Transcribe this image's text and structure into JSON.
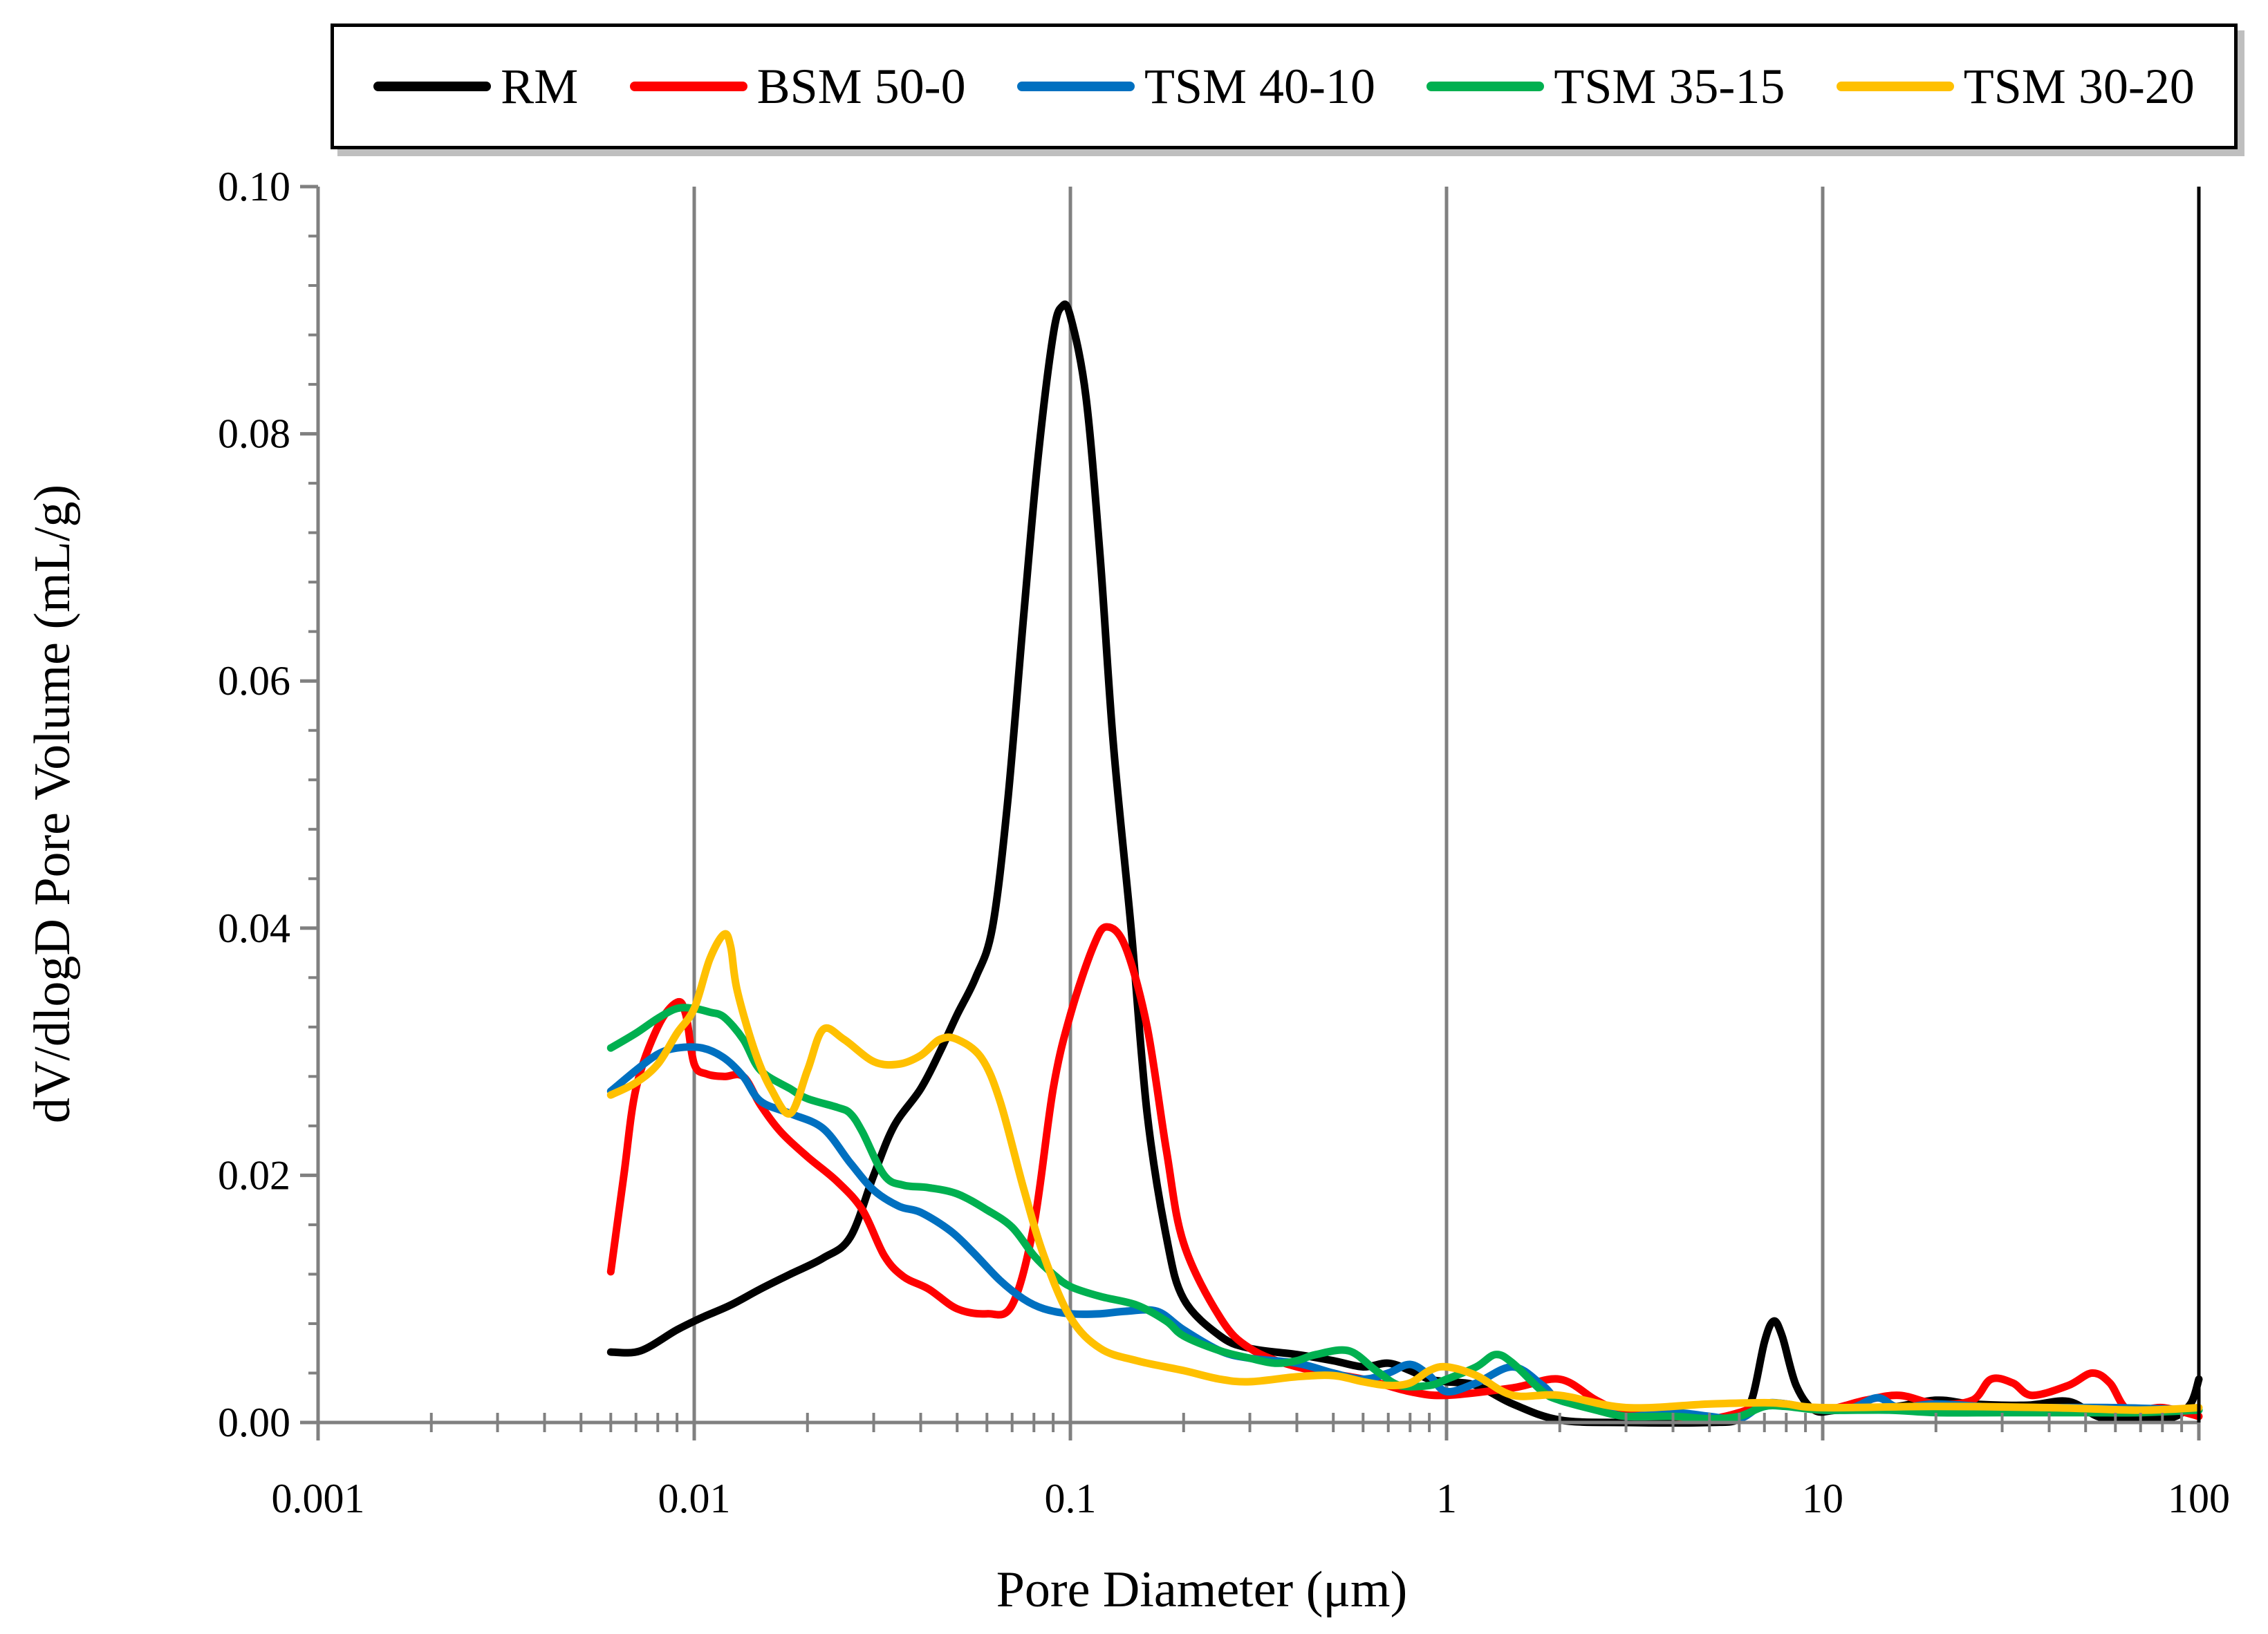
{
  "chart_data": {
    "type": "line",
    "title": "",
    "xlabel": "Pore Diameter (μm)",
    "ylabel": "dV/dlogD Pore Volume (mL/g)",
    "xscale": "log",
    "xlim": [
      0.001,
      100
    ],
    "ylim": [
      0,
      0.1
    ],
    "x_ticks": [
      0.001,
      0.01,
      0.1,
      1,
      10,
      100
    ],
    "x_tick_labels": [
      "0.001",
      "0.01",
      "0.1",
      "1",
      "10",
      "100"
    ],
    "y_ticks": [
      0,
      0.02,
      0.04,
      0.06,
      0.08,
      0.1
    ],
    "y_tick_labels": [
      "0.00",
      "0.02",
      "0.04",
      "0.06",
      "0.08",
      "0.10"
    ],
    "grid": "vertical major gridlines",
    "legend_position": "top",
    "series": [
      {
        "name": "RM",
        "color": "#000000",
        "points": [
          [
            0.006,
            0.0057
          ],
          [
            0.0072,
            0.0058
          ],
          [
            0.009,
            0.0075
          ],
          [
            0.0105,
            0.0085
          ],
          [
            0.0125,
            0.0095
          ],
          [
            0.015,
            0.0108
          ],
          [
            0.018,
            0.012
          ],
          [
            0.022,
            0.0133
          ],
          [
            0.026,
            0.015
          ],
          [
            0.03,
            0.02
          ],
          [
            0.034,
            0.024
          ],
          [
            0.04,
            0.027
          ],
          [
            0.045,
            0.03
          ],
          [
            0.05,
            0.033
          ],
          [
            0.056,
            0.036
          ],
          [
            0.062,
            0.04
          ],
          [
            0.068,
            0.05
          ],
          [
            0.075,
            0.065
          ],
          [
            0.082,
            0.078
          ],
          [
            0.09,
            0.088
          ],
          [
            0.095,
            0.0903
          ],
          [
            0.1,
            0.0895
          ],
          [
            0.11,
            0.083
          ],
          [
            0.12,
            0.07
          ],
          [
            0.13,
            0.055
          ],
          [
            0.145,
            0.04
          ],
          [
            0.16,
            0.025
          ],
          [
            0.18,
            0.015
          ],
          [
            0.2,
            0.01
          ],
          [
            0.25,
            0.007
          ],
          [
            0.3,
            0.006
          ],
          [
            0.4,
            0.0055
          ],
          [
            0.5,
            0.005
          ],
          [
            0.6,
            0.0045
          ],
          [
            0.7,
            0.0048
          ],
          [
            0.8,
            0.0042
          ],
          [
            0.9,
            0.0035
          ],
          [
            1,
            0.0033
          ],
          [
            1.2,
            0.003
          ],
          [
            1.5,
            0.0015
          ],
          [
            2,
            0.0002
          ],
          [
            3,
            0
          ],
          [
            5,
            0
          ],
          [
            6,
            0.0003
          ],
          [
            6.5,
            0.002
          ],
          [
            7,
            0.0065
          ],
          [
            7.4,
            0.0082
          ],
          [
            7.8,
            0.007
          ],
          [
            8.5,
            0.003
          ],
          [
            9.5,
            0.001
          ],
          [
            11,
            0.001
          ],
          [
            15,
            0.0012
          ],
          [
            20,
            0.0018
          ],
          [
            25,
            0.0015
          ],
          [
            35,
            0.0014
          ],
          [
            45,
            0.0017
          ],
          [
            55,
            0.0004
          ],
          [
            70,
            0.0003
          ],
          [
            85,
            0.0004
          ],
          [
            95,
            0.0015
          ],
          [
            100,
            0.0035
          ]
        ]
      },
      {
        "name": "BSM 50-0",
        "color": "#ff0000",
        "points": [
          [
            0.006,
            0.0122
          ],
          [
            0.0065,
            0.02
          ],
          [
            0.007,
            0.027
          ],
          [
            0.008,
            0.032
          ],
          [
            0.009,
            0.034
          ],
          [
            0.0095,
            0.033
          ],
          [
            0.01,
            0.029
          ],
          [
            0.0108,
            0.0282
          ],
          [
            0.012,
            0.028
          ],
          [
            0.0135,
            0.028
          ],
          [
            0.015,
            0.0257
          ],
          [
            0.017,
            0.0235
          ],
          [
            0.02,
            0.0215
          ],
          [
            0.024,
            0.0195
          ],
          [
            0.028,
            0.0172
          ],
          [
            0.032,
            0.0135
          ],
          [
            0.036,
            0.0118
          ],
          [
            0.042,
            0.0108
          ],
          [
            0.05,
            0.0092
          ],
          [
            0.06,
            0.0088
          ],
          [
            0.07,
            0.0095
          ],
          [
            0.08,
            0.016
          ],
          [
            0.09,
            0.027
          ],
          [
            0.1,
            0.033
          ],
          [
            0.115,
            0.0385
          ],
          [
            0.125,
            0.0401
          ],
          [
            0.14,
            0.0385
          ],
          [
            0.16,
            0.032
          ],
          [
            0.18,
            0.022
          ],
          [
            0.2,
            0.0145
          ],
          [
            0.25,
            0.0085
          ],
          [
            0.3,
            0.006
          ],
          [
            0.4,
            0.0045
          ],
          [
            0.6,
            0.0035
          ],
          [
            0.8,
            0.0025
          ],
          [
            1,
            0.0022
          ],
          [
            1.5,
            0.0028
          ],
          [
            2,
            0.0035
          ],
          [
            2.5,
            0.0018
          ],
          [
            3,
            0.0008
          ],
          [
            4,
            0.0005
          ],
          [
            5,
            0.0003
          ],
          [
            6,
            0.0008
          ],
          [
            7,
            0.0015
          ],
          [
            8,
            0.0015
          ],
          [
            10,
            0.001
          ],
          [
            13,
            0.0018
          ],
          [
            16,
            0.0022
          ],
          [
            20,
            0.0015
          ],
          [
            25,
            0.0018
          ],
          [
            28,
            0.0035
          ],
          [
            32,
            0.0032
          ],
          [
            36,
            0.0022
          ],
          [
            45,
            0.003
          ],
          [
            52,
            0.004
          ],
          [
            58,
            0.0032
          ],
          [
            65,
            0.001
          ],
          [
            80,
            0.0012
          ],
          [
            100,
            0.0005
          ]
        ]
      },
      {
        "name": "TSM 40-10",
        "color": "#0070c0",
        "points": [
          [
            0.006,
            0.0268
          ],
          [
            0.007,
            0.0285
          ],
          [
            0.008,
            0.0298
          ],
          [
            0.009,
            0.0303
          ],
          [
            0.0105,
            0.0303
          ],
          [
            0.012,
            0.0295
          ],
          [
            0.0135,
            0.028
          ],
          [
            0.015,
            0.026
          ],
          [
            0.018,
            0.025
          ],
          [
            0.022,
            0.0238
          ],
          [
            0.026,
            0.021
          ],
          [
            0.03,
            0.0188
          ],
          [
            0.035,
            0.0175
          ],
          [
            0.04,
            0.017
          ],
          [
            0.048,
            0.0155
          ],
          [
            0.055,
            0.0138
          ],
          [
            0.065,
            0.0115
          ],
          [
            0.075,
            0.01
          ],
          [
            0.085,
            0.0092
          ],
          [
            0.1,
            0.0088
          ],
          [
            0.12,
            0.0088
          ],
          [
            0.14,
            0.009
          ],
          [
            0.17,
            0.009
          ],
          [
            0.2,
            0.0075
          ],
          [
            0.25,
            0.0058
          ],
          [
            0.3,
            0.0052
          ],
          [
            0.4,
            0.0048
          ],
          [
            0.5,
            0.004
          ],
          [
            0.6,
            0.0035
          ],
          [
            0.7,
            0.004
          ],
          [
            0.8,
            0.0047
          ],
          [
            0.9,
            0.0038
          ],
          [
            1,
            0.0025
          ],
          [
            1.2,
            0.0032
          ],
          [
            1.5,
            0.0045
          ],
          [
            1.8,
            0.003
          ],
          [
            2,
            0.0018
          ],
          [
            2.5,
            0.0012
          ],
          [
            3,
            0.0005
          ],
          [
            4,
            0.0008
          ],
          [
            5,
            0.0005
          ],
          [
            6,
            0.0003
          ],
          [
            7,
            0.0015
          ],
          [
            8,
            0.0015
          ],
          [
            10,
            0.001
          ],
          [
            12,
            0.0012
          ],
          [
            14,
            0.002
          ],
          [
            16,
            0.0012
          ],
          [
            20,
            0.0015
          ],
          [
            30,
            0.0012
          ],
          [
            40,
            0.0012
          ],
          [
            60,
            0.0012
          ],
          [
            100,
            0.001
          ]
        ]
      },
      {
        "name": "TSM 35-15",
        "color": "#00b050",
        "points": [
          [
            0.006,
            0.0303
          ],
          [
            0.007,
            0.0315
          ],
          [
            0.008,
            0.0327
          ],
          [
            0.009,
            0.0335
          ],
          [
            0.01,
            0.0335
          ],
          [
            0.011,
            0.0332
          ],
          [
            0.012,
            0.0328
          ],
          [
            0.0135,
            0.031
          ],
          [
            0.015,
            0.0285
          ],
          [
            0.018,
            0.027
          ],
          [
            0.02,
            0.0262
          ],
          [
            0.024,
            0.0255
          ],
          [
            0.026,
            0.025
          ],
          [
            0.028,
            0.0235
          ],
          [
            0.032,
            0.02
          ],
          [
            0.036,
            0.0192
          ],
          [
            0.042,
            0.019
          ],
          [
            0.05,
            0.0185
          ],
          [
            0.06,
            0.0172
          ],
          [
            0.07,
            0.0158
          ],
          [
            0.08,
            0.0135
          ],
          [
            0.09,
            0.012
          ],
          [
            0.1,
            0.011
          ],
          [
            0.12,
            0.0102
          ],
          [
            0.15,
            0.0095
          ],
          [
            0.18,
            0.0082
          ],
          [
            0.2,
            0.007
          ],
          [
            0.25,
            0.0058
          ],
          [
            0.3,
            0.0052
          ],
          [
            0.35,
            0.0048
          ],
          [
            0.4,
            0.005
          ],
          [
            0.45,
            0.0055
          ],
          [
            0.55,
            0.0058
          ],
          [
            0.65,
            0.0042
          ],
          [
            0.75,
            0.003
          ],
          [
            0.9,
            0.003
          ],
          [
            1,
            0.0035
          ],
          [
            1.2,
            0.0045
          ],
          [
            1.35,
            0.0055
          ],
          [
            1.5,
            0.0048
          ],
          [
            1.8,
            0.0025
          ],
          [
            2,
            0.0018
          ],
          [
            2.5,
            0.001
          ],
          [
            3,
            0.0005
          ],
          [
            4,
            0.0005
          ],
          [
            5,
            0.0003
          ],
          [
            6,
            0.0005
          ],
          [
            7,
            0.0013
          ],
          [
            8,
            0.0013
          ],
          [
            10,
            0.001
          ],
          [
            15,
            0.001
          ],
          [
            20,
            0.0008
          ],
          [
            30,
            0.0008
          ],
          [
            50,
            0.0008
          ],
          [
            70,
            0.0008
          ],
          [
            100,
            0.001
          ]
        ]
      },
      {
        "name": "TSM 30-20",
        "color": "#ffc000",
        "points": [
          [
            0.006,
            0.0265
          ],
          [
            0.007,
            0.0275
          ],
          [
            0.008,
            0.029
          ],
          [
            0.009,
            0.0315
          ],
          [
            0.01,
            0.0335
          ],
          [
            0.011,
            0.0375
          ],
          [
            0.012,
            0.0395
          ],
          [
            0.0125,
            0.0385
          ],
          [
            0.013,
            0.035
          ],
          [
            0.0145,
            0.03
          ],
          [
            0.016,
            0.027
          ],
          [
            0.018,
            0.025
          ],
          [
            0.02,
            0.0285
          ],
          [
            0.022,
            0.0318
          ],
          [
            0.025,
            0.031
          ],
          [
            0.03,
            0.0292
          ],
          [
            0.035,
            0.029
          ],
          [
            0.04,
            0.0297
          ],
          [
            0.045,
            0.031
          ],
          [
            0.05,
            0.031
          ],
          [
            0.058,
            0.0295
          ],
          [
            0.065,
            0.026
          ],
          [
            0.075,
            0.019
          ],
          [
            0.085,
            0.0135
          ],
          [
            0.1,
            0.0085
          ],
          [
            0.12,
            0.006
          ],
          [
            0.15,
            0.005
          ],
          [
            0.2,
            0.0042
          ],
          [
            0.25,
            0.0035
          ],
          [
            0.3,
            0.0033
          ],
          [
            0.4,
            0.0037
          ],
          [
            0.5,
            0.0038
          ],
          [
            0.6,
            0.0033
          ],
          [
            0.7,
            0.003
          ],
          [
            0.8,
            0.0032
          ],
          [
            0.9,
            0.0042
          ],
          [
            1,
            0.0045
          ],
          [
            1.2,
            0.0038
          ],
          [
            1.5,
            0.0022
          ],
          [
            2,
            0.0022
          ],
          [
            3,
            0.0012
          ],
          [
            5,
            0.0015
          ],
          [
            7,
            0.0016
          ],
          [
            8,
            0.0015
          ],
          [
            10,
            0.0012
          ],
          [
            20,
            0.0013
          ],
          [
            40,
            0.0012
          ],
          [
            70,
            0.001
          ],
          [
            100,
            0.0012
          ]
        ]
      }
    ]
  }
}
